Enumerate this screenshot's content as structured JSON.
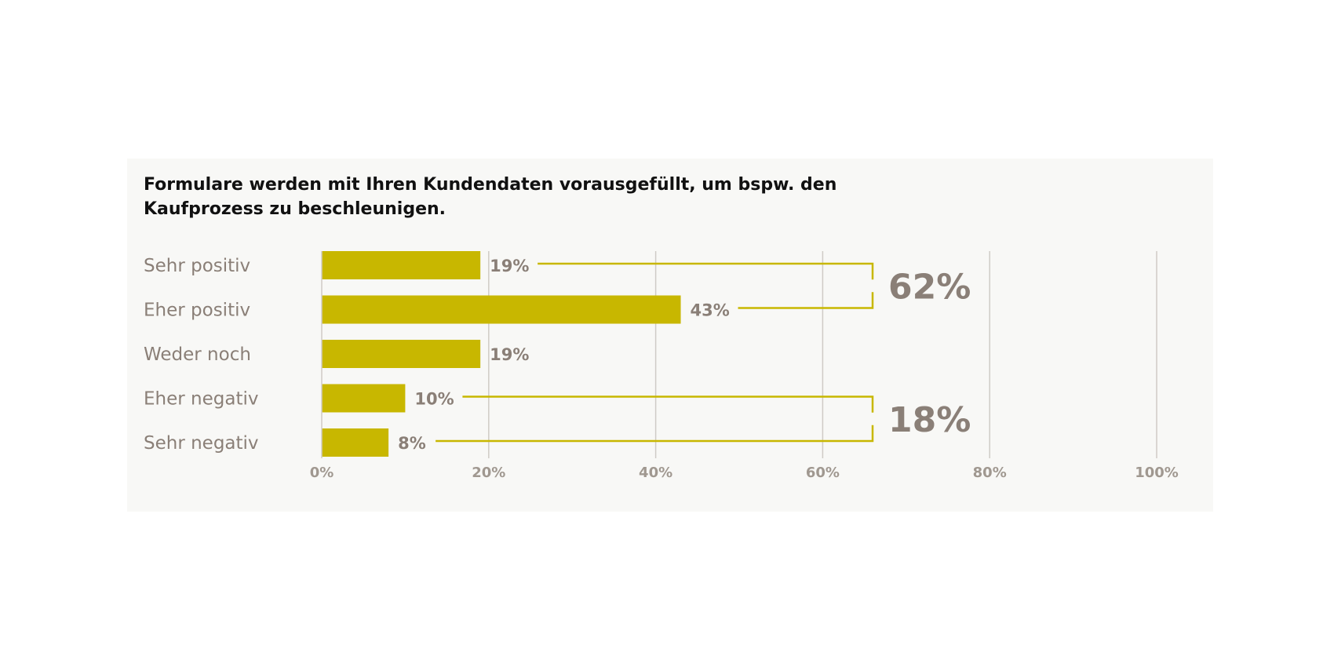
{
  "title_lines": [
    "Formulare werden mit Ihren Kundendaten vorausgefüllt, um bspw. den",
    "Kaufprozess zu beschleunigen."
  ],
  "colors": {
    "bar": "#c8b700",
    "panel": "#f8f8f6",
    "text_muted": "#8a7f77",
    "grid": "#cfcbc6"
  },
  "chart_data": {
    "type": "bar",
    "orientation": "horizontal",
    "title": "Formulare werden mit Ihren Kundendaten vorausgefüllt, um bspw. den Kaufprozess zu beschleunigen.",
    "categories": [
      "Sehr positiv",
      "Eher positiv",
      "Weder noch",
      "Eher negativ",
      "Sehr negativ"
    ],
    "values": [
      19,
      43,
      19,
      10,
      8
    ],
    "value_labels": [
      "19%",
      "43%",
      "19%",
      "10%",
      "8%"
    ],
    "xlim": [
      0,
      100
    ],
    "xticks": [
      0,
      20,
      40,
      60,
      80,
      100
    ],
    "xtick_labels": [
      "0%",
      "20%",
      "40%",
      "60%",
      "80%",
      "100%"
    ],
    "grid": true,
    "groups": [
      {
        "rows": [
          0,
          1
        ],
        "label": "62%"
      },
      {
        "rows": [
          3,
          4
        ],
        "label": "18%"
      }
    ]
  }
}
